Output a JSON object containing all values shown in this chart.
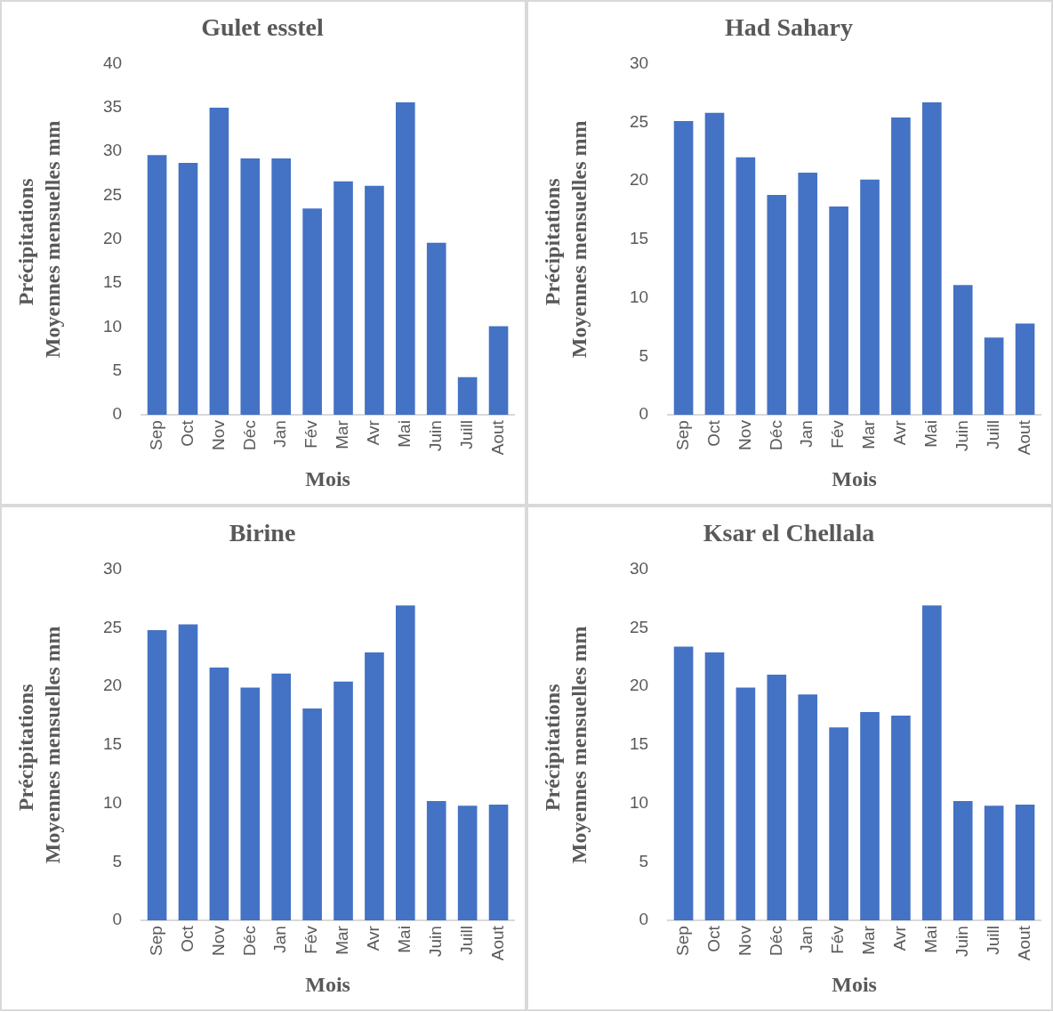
{
  "chart_data": [
    {
      "type": "bar",
      "title": "Gulet esstel",
      "xlabel": "Mois",
      "ylabel": "Précipitations  Moyennes mensuelles mm",
      "categories": [
        "Sep",
        "Oct",
        "Nov",
        "Déc",
        "Jan",
        "Fév",
        "Mar",
        "Avr",
        "Mai",
        "Juin",
        "Juill",
        "Aout"
      ],
      "values": [
        29.6,
        28.7,
        35.0,
        29.2,
        29.2,
        23.5,
        26.6,
        26.1,
        35.6,
        19.6,
        4.3,
        10.1
      ],
      "color": "#4472c4",
      "ylim": [
        0,
        40
      ],
      "yticks": [
        0,
        5,
        10,
        15,
        20,
        25,
        30,
        35,
        40
      ],
      "grid": false
    },
    {
      "type": "bar",
      "title": "Had Sahary",
      "xlabel": "Mois",
      "ylabel": "Précipitations  Moyennes mensuelles mm",
      "categories": [
        "Sep",
        "Oct",
        "Nov",
        "Déc",
        "Jan",
        "Fév",
        "Mar",
        "Avr",
        "Mai",
        "Juin",
        "Juill",
        "Aout"
      ],
      "values": [
        25.1,
        25.8,
        22.0,
        18.8,
        20.7,
        17.8,
        20.1,
        25.4,
        26.7,
        11.1,
        6.6,
        7.8
      ],
      "color": "#4472c4",
      "ylim": [
        0,
        30
      ],
      "yticks": [
        0,
        5,
        10,
        15,
        20,
        25,
        30
      ],
      "grid": false
    },
    {
      "type": "bar",
      "title": "Birine",
      "xlabel": "Mois",
      "ylabel": "Précipitations  Moyennes mensuelles mm",
      "categories": [
        "Sep",
        "Oct",
        "Nov",
        "Déc",
        "Jan",
        "Fév",
        "Mar",
        "Avr",
        "Mai",
        "Juin",
        "Juill",
        "Aout"
      ],
      "values": [
        24.8,
        25.3,
        21.6,
        19.9,
        21.1,
        18.1,
        20.4,
        22.9,
        26.9,
        10.2,
        9.8,
        9.9
      ],
      "color": "#4472c4",
      "ylim": [
        0,
        30
      ],
      "yticks": [
        0,
        5,
        10,
        15,
        20,
        25,
        30
      ],
      "grid": false
    },
    {
      "type": "bar",
      "title": "Ksar el Chellala",
      "xlabel": "Mois",
      "ylabel": "Précipitations  Moyennes mensuelles mm",
      "categories": [
        "Sep",
        "Oct",
        "Nov",
        "Déc",
        "Jan",
        "Fév",
        "Mar",
        "Avr",
        "Mai",
        "Juin",
        "Juill",
        "Aout"
      ],
      "values": [
        23.4,
        22.9,
        19.9,
        21.0,
        19.3,
        16.5,
        17.8,
        17.5,
        26.9,
        10.2,
        9.8,
        9.9
      ],
      "color": "#4472c4",
      "ylim": [
        0,
        30
      ],
      "yticks": [
        0,
        5,
        10,
        15,
        20,
        25,
        30
      ],
      "grid": false
    }
  ]
}
